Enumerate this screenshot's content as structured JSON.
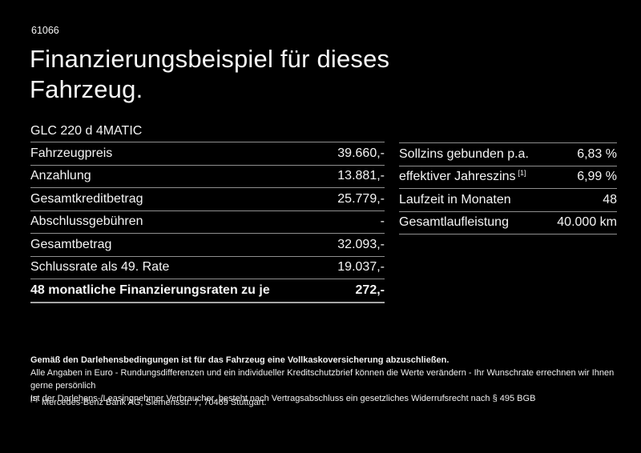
{
  "page": {
    "background_color": "#000000",
    "text_color": "#f5f5f5",
    "divider_color": "#8f8f8f",
    "reference_number": "61066",
    "title_line1": "Finanzierungsbeispiel für dieses",
    "title_line2": "Fahrzeug."
  },
  "finance_table": {
    "vehicle_name": "GLC 220 d 4MATIC",
    "rows": [
      {
        "label": "Fahrzeugpreis",
        "value": "39.660,-"
      },
      {
        "label": "Anzahlung",
        "value": "13.881,-"
      },
      {
        "label": "Gesamtkreditbetrag",
        "value": "25.779,-"
      },
      {
        "label": "Abschlussgebühren",
        "value": "-"
      },
      {
        "label": "Gesamtbetrag",
        "value": "32.093,-"
      },
      {
        "label": "Schlussrate als 49. Rate",
        "value": "19.037,-"
      },
      {
        "label": "48 monatliche Finanzierungsraten zu je",
        "value": "272,-"
      }
    ]
  },
  "conditions_table": {
    "rows": [
      {
        "label": "Sollzins gebunden p.a.",
        "value": "6,83 %"
      },
      {
        "label": "effektiver Jahreszins",
        "footnote_marker": "[1]",
        "value": "6,99 %"
      },
      {
        "label": "Laufzeit in Monaten",
        "value": "48"
      },
      {
        "label": "Gesamtlaufleistung",
        "value": "40.000 km"
      }
    ]
  },
  "footer": {
    "insurance_note": "Gemäß den Darlehensbedingungen ist für das Fahrzeug eine Vollkaskoversicherung abzuschließen.",
    "disclaimer_line1": "Alle Angaben in Euro - Rundungsdifferenzen und ein individueller Kreditschutzbrief können die Werte verändern - Ihr Wunschrate errechnen wir Ihnen gerne persönlich",
    "disclaimer_line2": "Ist der Darlehens-/Leasingnehmer Verbraucher, besteht nach Vertragsabschluss ein gesetzliches Widerrufsrecht nach § 495 BGB",
    "footnote_marker": "[1]",
    "footnote_text": "Mercedes-Benz Bank AG, Siemensstr. 7, 70469 Stuttgart."
  }
}
